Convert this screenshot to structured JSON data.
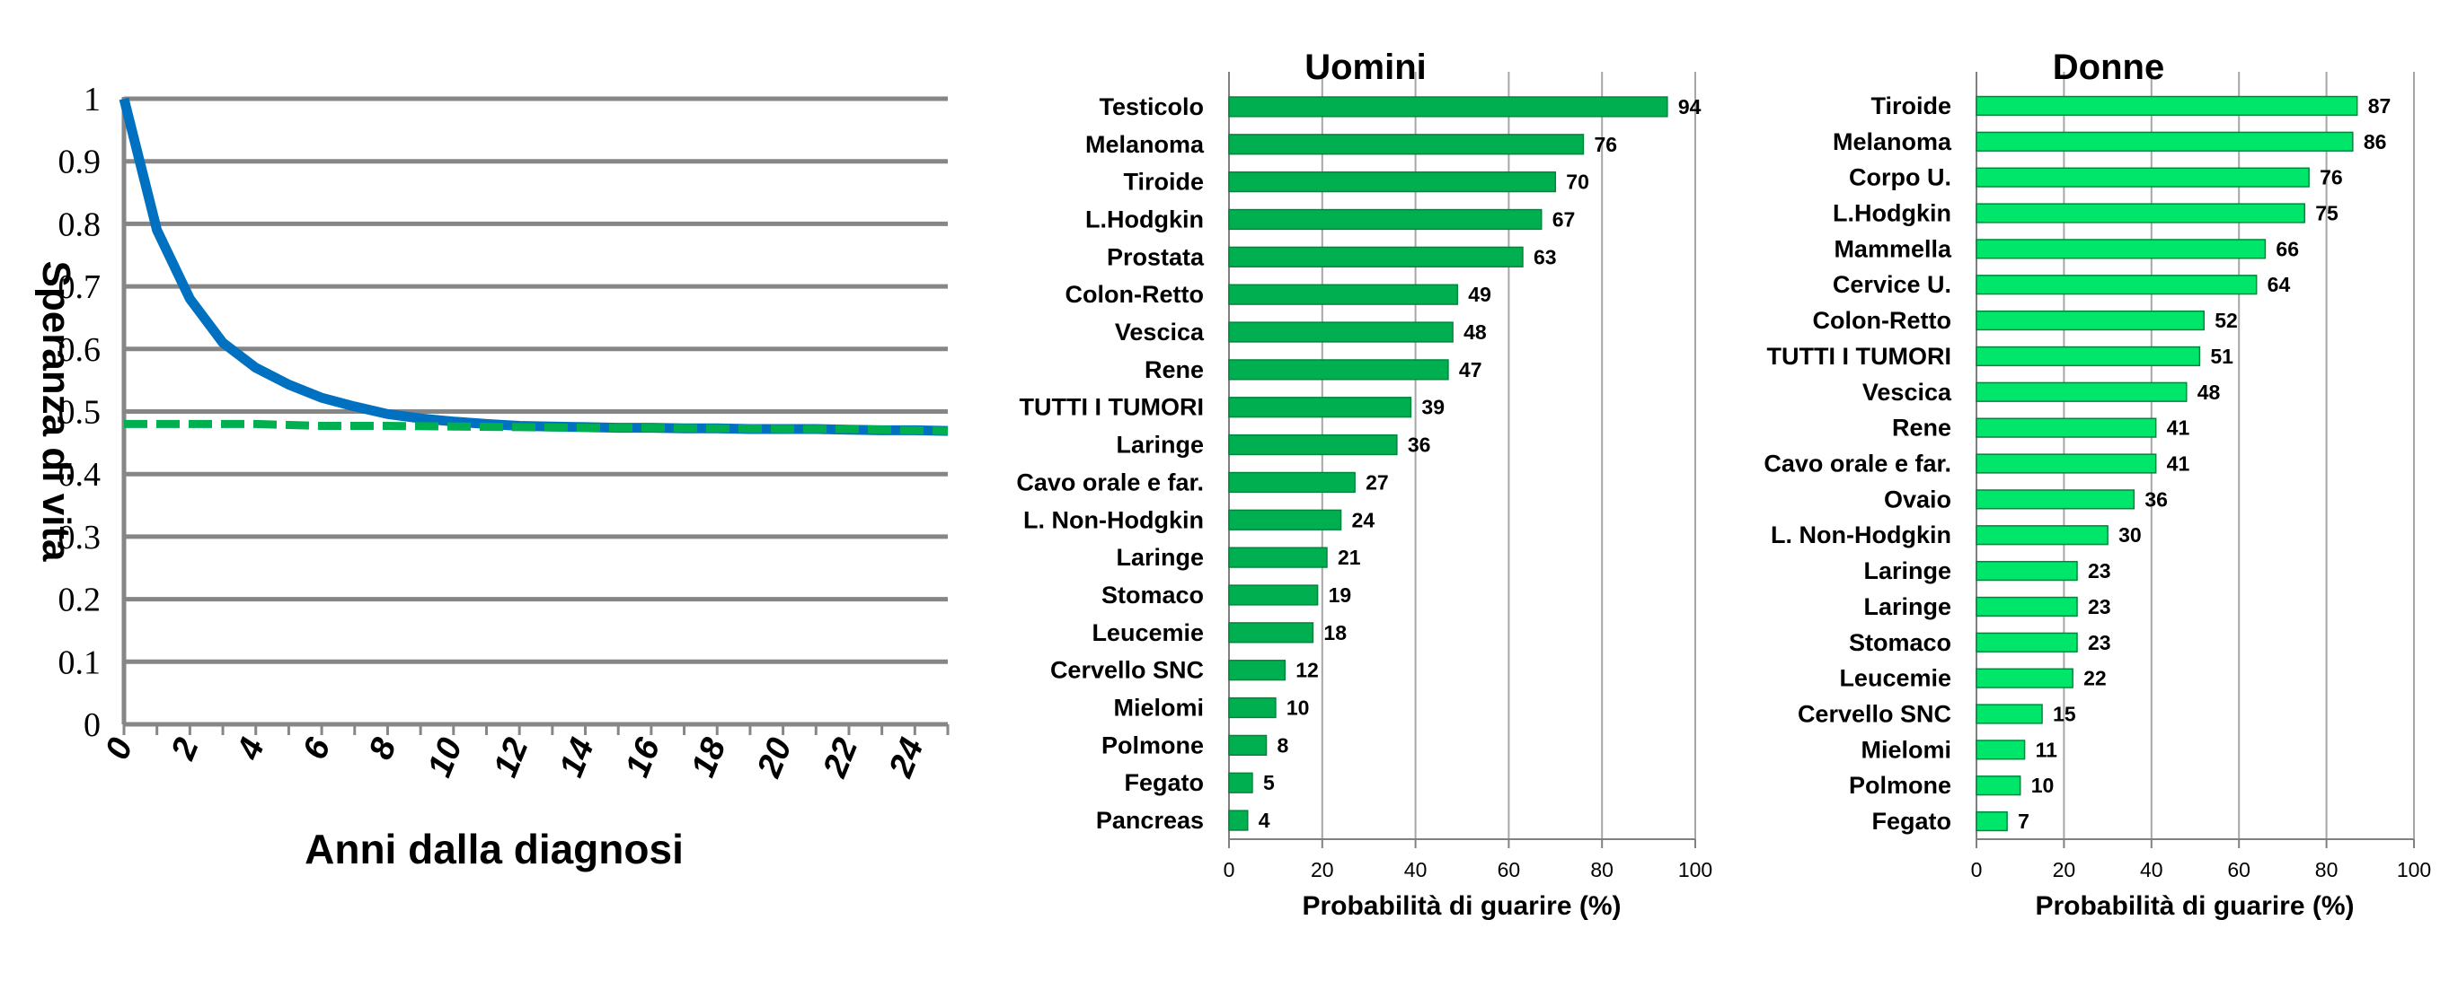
{
  "chart_data": [
    {
      "type": "line",
      "title": "",
      "xlabel": "Anni dalla  diagnosi",
      "ylabel": "Speranza di vita",
      "xlim": [
        0,
        25
      ],
      "ylim": [
        0,
        1
      ],
      "x_ticks": [
        "0",
        "2",
        "4",
        "6",
        "8",
        "10",
        "12",
        "14",
        "16",
        "18",
        "20",
        "22",
        "24"
      ],
      "y_ticks": [
        "0",
        "0.1",
        "0.2",
        "0.3",
        "0.4",
        "0.5",
        "0.6",
        "0.7",
        "0.8",
        "0.9",
        "1"
      ],
      "grid": "horizontal",
      "series": [
        {
          "style": "solid",
          "color": "#0070C0",
          "points": [
            [
              0,
              1.0
            ],
            [
              1,
              0.79
            ],
            [
              2,
              0.68
            ],
            [
              3,
              0.61
            ],
            [
              4,
              0.57
            ],
            [
              5,
              0.543
            ],
            [
              6,
              0.522
            ],
            [
              7,
              0.508
            ],
            [
              8,
              0.496
            ],
            [
              9,
              0.489
            ],
            [
              10,
              0.484
            ],
            [
              11,
              0.48
            ],
            [
              12,
              0.477
            ],
            [
              13,
              0.476
            ],
            [
              14,
              0.475
            ],
            [
              15,
              0.474
            ],
            [
              16,
              0.474
            ],
            [
              17,
              0.473
            ],
            [
              18,
              0.473
            ],
            [
              19,
              0.472
            ],
            [
              20,
              0.472
            ],
            [
              21,
              0.472
            ],
            [
              22,
              0.471
            ],
            [
              23,
              0.47
            ],
            [
              24,
              0.47
            ],
            [
              25,
              0.469
            ]
          ]
        },
        {
          "style": "dashed",
          "color": "#00B050",
          "points": [
            [
              0,
              0.48
            ],
            [
              2,
              0.48
            ],
            [
              4,
              0.48
            ],
            [
              6,
              0.477
            ],
            [
              8,
              0.477
            ],
            [
              10,
              0.476
            ],
            [
              12,
              0.475
            ],
            [
              14,
              0.474
            ],
            [
              16,
              0.474
            ],
            [
              18,
              0.473
            ],
            [
              20,
              0.472
            ],
            [
              22,
              0.472
            ],
            [
              24,
              0.47
            ],
            [
              25,
              0.469
            ]
          ]
        }
      ]
    },
    {
      "type": "bar",
      "orientation": "horizontal",
      "title": "Uomini",
      "xlabel": "Probabilità di guarire (%)",
      "xlim": [
        0,
        100
      ],
      "x_ticks": [
        "0",
        "20",
        "40",
        "60",
        "80",
        "100"
      ],
      "bar_color": "#00B050",
      "categories": [
        "Testicolo",
        "Melanoma",
        "Tiroide",
        "L.Hodgkin",
        "Prostata",
        "Colon-Retto",
        "Vescica",
        "Rene",
        "TUTTI I TUMORI",
        "Laringe",
        "Cavo orale e far.",
        "L. Non-Hodgkin",
        "Laringe",
        "Stomaco",
        "Leucemie",
        "Cervello SNC",
        "Mielomi",
        "Polmone",
        "Fegato",
        "Pancreas"
      ],
      "values": [
        94,
        76,
        70,
        67,
        63,
        49,
        48,
        47,
        39,
        36,
        27,
        24,
        21,
        19,
        18,
        12,
        10,
        8,
        5,
        4
      ]
    },
    {
      "type": "bar",
      "orientation": "horizontal",
      "title": "Donne",
      "xlabel": "Probabilità di guarire (%)",
      "xlim": [
        0,
        100
      ],
      "x_ticks": [
        "0",
        "20",
        "40",
        "60",
        "80",
        "100"
      ],
      "bar_color": "#00E66A",
      "categories": [
        "Tiroide",
        "Melanoma",
        "Corpo U.",
        "L.Hodgkin",
        "Mammella",
        "Cervice U.",
        "Colon-Retto",
        "TUTTI I TUMORI",
        "Vescica",
        "Rene",
        "Cavo orale e far.",
        "Ovaio",
        "L. Non-Hodgkin",
        "Laringe",
        "Laringe",
        "Stomaco",
        "Leucemie",
        "Cervello SNC",
        "Mielomi",
        "Polmone",
        "Fegato"
      ],
      "values": [
        87,
        86,
        76,
        75,
        66,
        64,
        52,
        51,
        48,
        41,
        41,
        36,
        30,
        23,
        23,
        23,
        22,
        15,
        11,
        10,
        7
      ]
    }
  ]
}
